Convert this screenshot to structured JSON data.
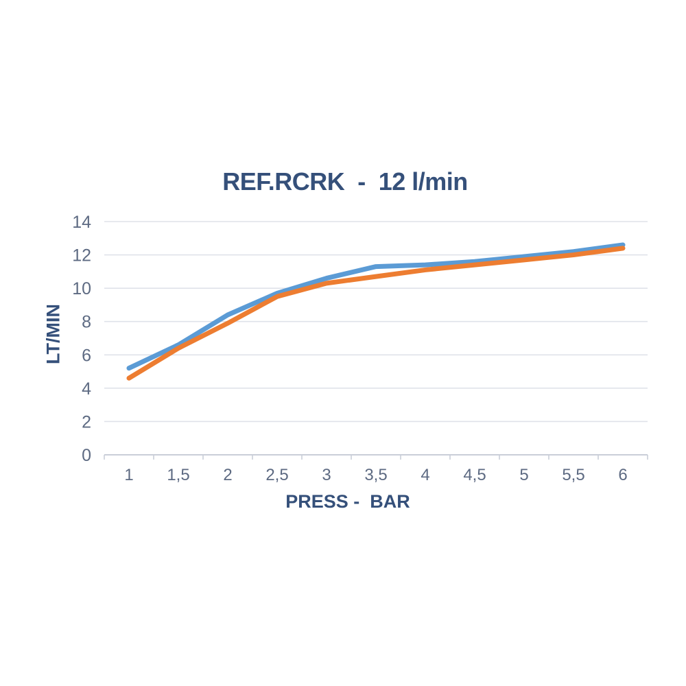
{
  "page": {
    "background": "#ffffff"
  },
  "chart_data": {
    "type": "line",
    "title": "REF.RCRK  -  12 l/min",
    "xlabel": "PRESS -  BAR",
    "ylabel": "LT/MIN",
    "categories": [
      "1",
      "1,5",
      "2",
      "2,5",
      "3",
      "3,5",
      "4",
      "4,5",
      "5",
      "5,5",
      "6"
    ],
    "x_values": [
      1,
      1.5,
      2,
      2.5,
      3,
      3.5,
      4,
      4.5,
      5,
      5.5,
      6
    ],
    "series": [
      {
        "name": "blue",
        "color": "#5B9BD5",
        "values": [
          5.2,
          6.6,
          8.4,
          9.7,
          10.6,
          11.3,
          11.4,
          11.6,
          11.9,
          12.2,
          12.6
        ]
      },
      {
        "name": "orange",
        "color": "#ED7D31",
        "values": [
          4.6,
          6.4,
          7.9,
          9.5,
          10.3,
          10.7,
          11.1,
          11.4,
          11.7,
          12.0,
          12.4
        ]
      }
    ],
    "ylim": [
      0,
      14
    ],
    "ytick_step": 2,
    "grid": "horizontal",
    "legend": "none",
    "colors": {
      "gridline": "#dfe2e9",
      "axis": "#c9ced8",
      "tick_label": "#5d6a82",
      "title": "#35507a",
      "axis_title": "#35507a",
      "background": "#ffffff"
    }
  }
}
